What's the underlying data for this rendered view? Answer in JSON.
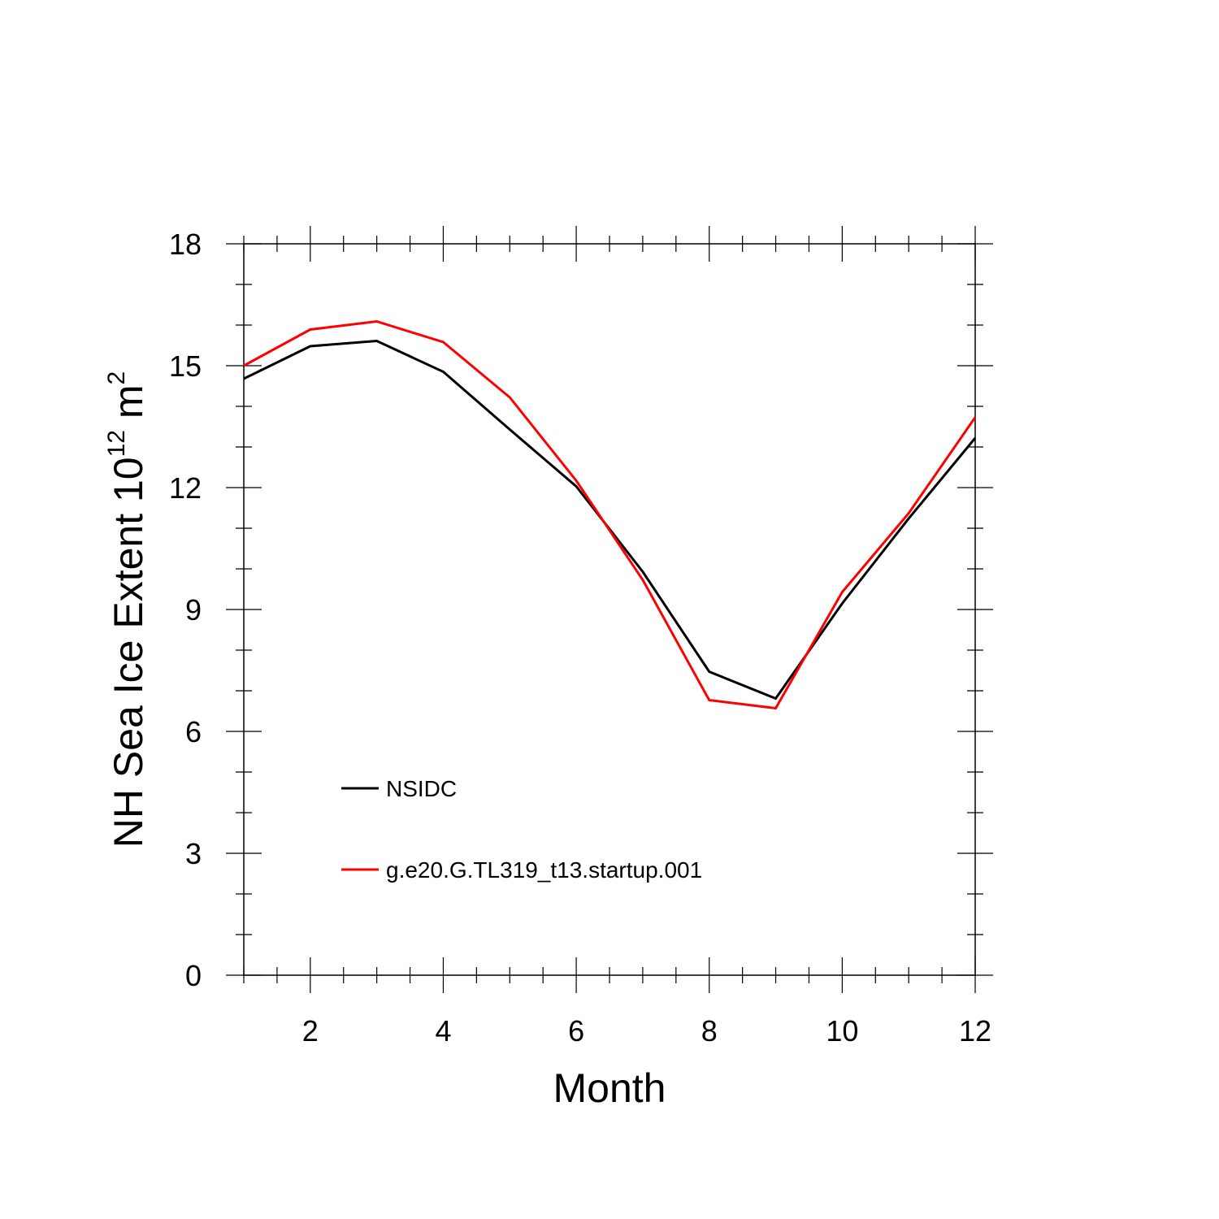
{
  "chart_data": {
    "type": "line",
    "xlabel": "Month",
    "ylabel": {
      "text": "NH Sea Ice Extent 10",
      "exp1": "12",
      "unit": " m",
      "exp2": "2"
    },
    "xlim": [
      1,
      12
    ],
    "ylim": [
      0,
      18
    ],
    "x": [
      1,
      2,
      3,
      4,
      5,
      6,
      7,
      8,
      9,
      10,
      11,
      12
    ],
    "x_ticks": [
      "2",
      "4",
      "6",
      "8",
      "10",
      "12"
    ],
    "x_tick_values": [
      2,
      4,
      6,
      8,
      10,
      12
    ],
    "y_ticks": [
      "0",
      "3",
      "6",
      "9",
      "12",
      "15",
      "18"
    ],
    "y_tick_values": [
      0,
      3,
      6,
      9,
      12,
      15,
      18
    ],
    "grid": false,
    "legend_position": "lower-left",
    "series": [
      {
        "name": "NSIDC",
        "color": "#000000",
        "values": [
          14.68,
          15.48,
          15.61,
          14.85,
          13.43,
          12.03,
          9.93,
          7.47,
          6.81,
          9.15,
          11.24,
          13.22
        ]
      },
      {
        "name": "g.e20.G.TL319_t13.startup.001",
        "color": "#ff0000",
        "values": [
          15.0,
          15.89,
          16.09,
          15.58,
          14.22,
          12.17,
          9.73,
          6.77,
          6.57,
          9.43,
          11.37,
          13.73
        ]
      }
    ]
  }
}
